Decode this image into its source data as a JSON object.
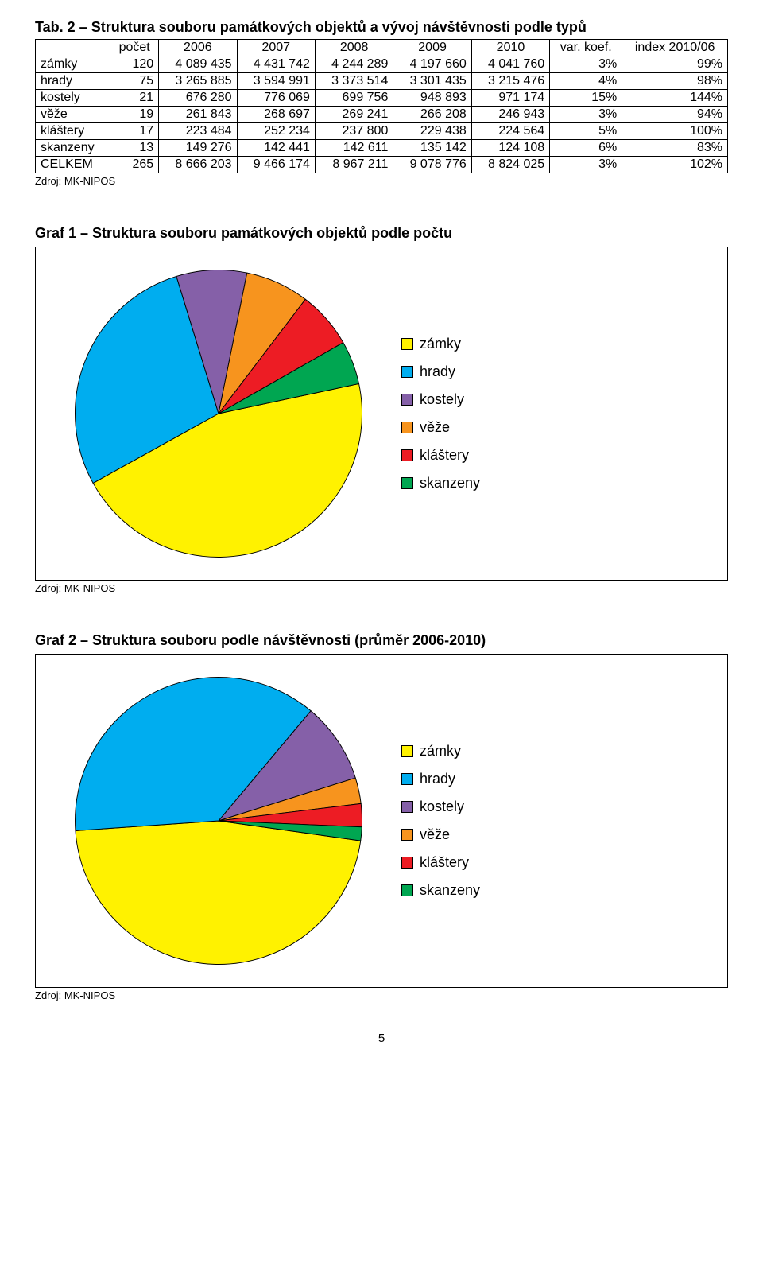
{
  "table": {
    "title": "Tab. 2 – Struktura souboru památkových objektů a vývoj návštěvnosti podle typů",
    "columns": [
      "",
      "počet",
      "2006",
      "2007",
      "2008",
      "2009",
      "2010",
      "var. koef.",
      "index 2010/06"
    ],
    "rows": [
      [
        "zámky",
        "120",
        "4 089 435",
        "4 431 742",
        "4 244 289",
        "4 197 660",
        "4 041 760",
        "3%",
        "99%"
      ],
      [
        "hrady",
        "75",
        "3 265 885",
        "3 594 991",
        "3 373 514",
        "3 301 435",
        "3 215 476",
        "4%",
        "98%"
      ],
      [
        "kostely",
        "21",
        "676 280",
        "776 069",
        "699 756",
        "948 893",
        "971 174",
        "15%",
        "144%"
      ],
      [
        "věže",
        "19",
        "261 843",
        "268 697",
        "269 241",
        "266 208",
        "246 943",
        "3%",
        "94%"
      ],
      [
        "kláštery",
        "17",
        "223 484",
        "252 234",
        "237 800",
        "229 438",
        "224 564",
        "5%",
        "100%"
      ],
      [
        "skanzeny",
        "13",
        "149 276",
        "142 441",
        "142 611",
        "135 142",
        "124 108",
        "6%",
        "83%"
      ],
      [
        "CELKEM",
        "265",
        "8 666 203",
        "9 466 174",
        "8 967 211",
        "9 078 776",
        "8 824 025",
        "3%",
        "102%"
      ]
    ],
    "source": "Zdroj: MK-NIPOS"
  },
  "chart1": {
    "title": "Graf 1 – Struktura souboru památkových objektů podle počtu",
    "source": "Zdroj: MK-NIPOS",
    "type": "pie",
    "labels": [
      "zámky",
      "hrady",
      "kostely",
      "věže",
      "kláštery",
      "skanzeny"
    ],
    "values": [
      120,
      75,
      21,
      19,
      17,
      13
    ],
    "colors": [
      "#fff200",
      "#00adef",
      "#8560a8",
      "#f7941e",
      "#ed1c24",
      "#00a651"
    ],
    "start_angle_deg": 78,
    "direction": "clockwise",
    "stroke": "#000",
    "stroke_width": 0.5,
    "background": "#ffffff",
    "legend_fontsize": 18
  },
  "chart2": {
    "title": "Graf 2 – Struktura souboru podle návštěvnosti (průměr 2006-2010)",
    "source": "Zdroj: MK-NIPOS",
    "type": "pie",
    "labels": [
      "zámky",
      "hrady",
      "kostely",
      "věže",
      "kláštery",
      "skanzeny"
    ],
    "values": [
      4200977,
      3350260,
      814434,
      262586,
      233504,
      138716
    ],
    "colors": [
      "#fff200",
      "#00adef",
      "#8560a8",
      "#f7941e",
      "#ed1c24",
      "#00a651"
    ],
    "start_angle_deg": 98,
    "direction": "clockwise",
    "stroke": "#000",
    "stroke_width": 0.5,
    "background": "#ffffff",
    "legend_fontsize": 18
  },
  "page_number": "5"
}
